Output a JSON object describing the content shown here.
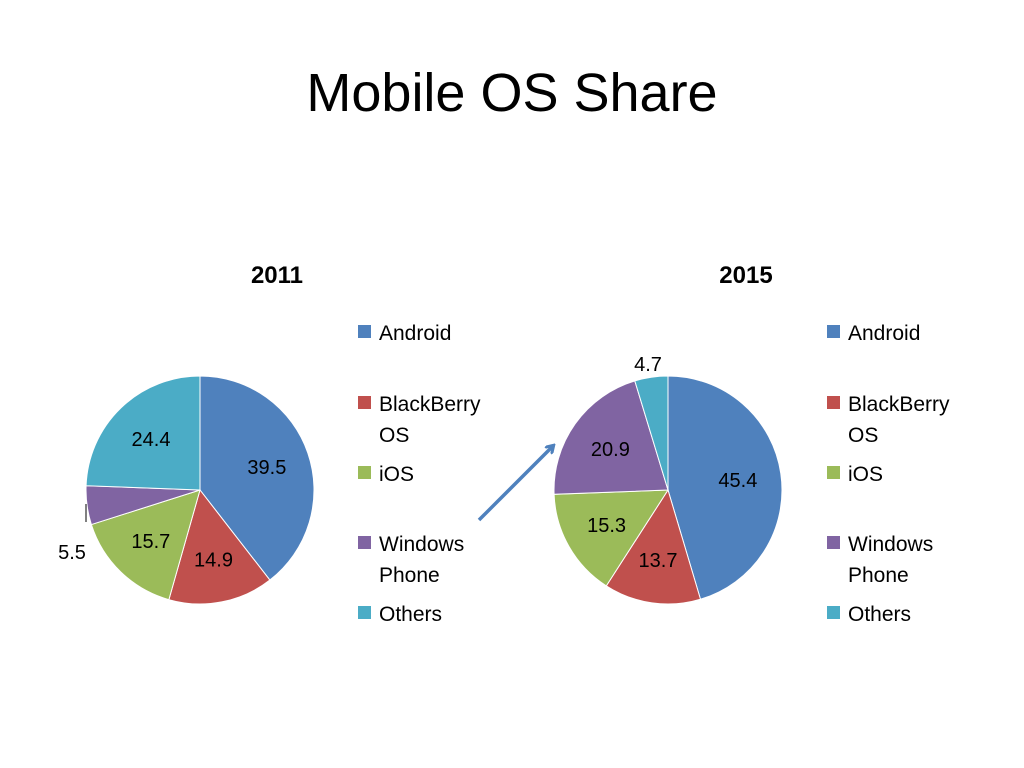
{
  "slide": {
    "title": "Mobile OS Share"
  },
  "chart_data": [
    {
      "type": "pie",
      "title": "2011",
      "categories": [
        "Android",
        "BlackBerry OS",
        "iOS",
        "Windows Phone",
        "Others"
      ],
      "values": [
        39.5,
        14.9,
        15.7,
        5.5,
        24.4
      ],
      "colors": [
        "#4F81BD",
        "#C0504D",
        "#9BBB59",
        "#8064A2",
        "#4BACC6"
      ],
      "legend": "right"
    },
    {
      "type": "pie",
      "title": "2015",
      "categories": [
        "Android",
        "BlackBerry OS",
        "iOS",
        "Windows Phone",
        "Others"
      ],
      "values": [
        45.4,
        13.7,
        15.3,
        20.9,
        4.7
      ],
      "colors": [
        "#4F81BD",
        "#C0504D",
        "#9BBB59",
        "#8064A2",
        "#4BACC6"
      ],
      "legend": "right"
    }
  ],
  "arrow": {
    "color": "#4F81BD",
    "icon": "arrow-up-right-icon"
  }
}
